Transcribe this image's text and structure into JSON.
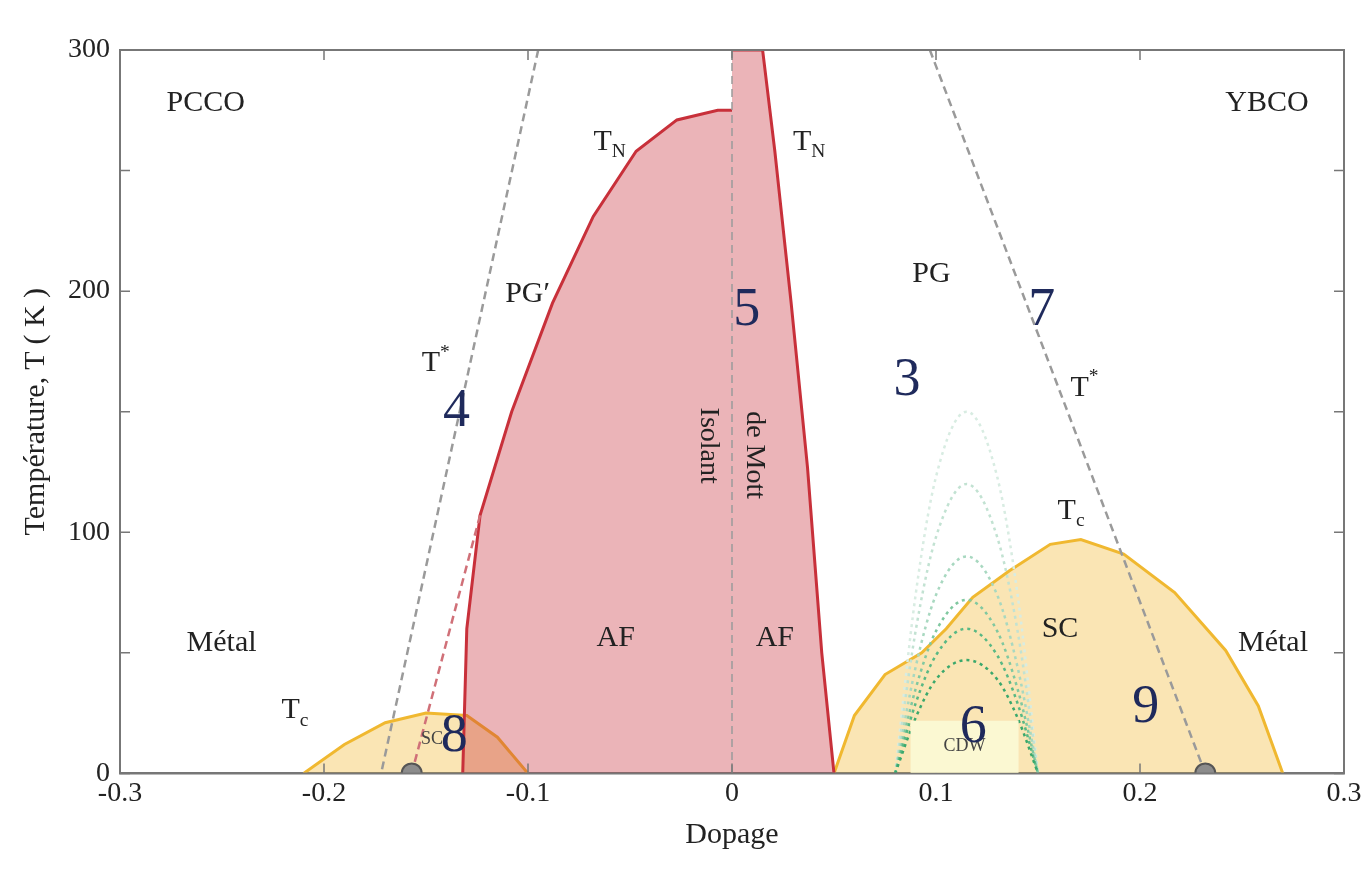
{
  "chart_data": {
    "type": "area",
    "xlabel": "Dopage",
    "ylabel": "Température, T ( K )",
    "xlim": [
      -0.3,
      0.3
    ],
    "xticks": [
      -0.3,
      -0.2,
      -0.1,
      0,
      0.1,
      0.2,
      0.3
    ],
    "ylim": [
      0,
      300
    ],
    "yticks": [
      0,
      {
        "value": 50,
        "label": null
      },
      100,
      {
        "value": 150,
        "label": null
      },
      200,
      {
        "value": 250,
        "label": null
      },
      300
    ],
    "grid": false,
    "legend": false,
    "series": [
      {
        "color": "#f0b830",
        "x": [
          -0.21,
          -0.19,
          -0.17,
          -0.15,
          -0.13,
          -0.115,
          -0.1
        ],
        "values": [
          0,
          12,
          21,
          25,
          24,
          15,
          0
        ]
      },
      {
        "color": "#f0b830",
        "x": [
          0.05,
          0.06,
          0.075,
          0.093,
          0.105,
          0.118,
          0.136,
          0.156,
          0.171,
          0.192,
          0.217,
          0.242,
          0.258,
          0.27
        ],
        "values": [
          0,
          24,
          41,
          50,
          60,
          73,
          84,
          95,
          97,
          91,
          75,
          51,
          28,
          0
        ]
      },
      {
        "type": "line",
        "line_style": "dotted",
        "color": "#d8ece2",
        "x": [
          0.08,
          0.09,
          0.1,
          0.115,
          0.13,
          0.14,
          0.15
        ],
        "values": [
          0,
          74,
          123,
          150,
          123,
          74,
          0
        ]
      },
      {
        "type": "line",
        "line_style": "dotted",
        "color": "#c2e2d2",
        "x": [
          0.08,
          0.09,
          0.1,
          0.115,
          0.13,
          0.14,
          0.15
        ],
        "values": [
          0,
          59,
          98,
          120,
          98,
          59,
          0
        ]
      },
      {
        "type": "line",
        "line_style": "dotted",
        "color": "#a8d8c0",
        "x": [
          0.08,
          0.09,
          0.1,
          0.115,
          0.13,
          0.14,
          0.15
        ],
        "values": [
          0,
          44,
          74,
          90,
          74,
          44,
          0
        ]
      },
      {
        "type": "line",
        "line_style": "dotted",
        "color": "#80c8a0",
        "x": [
          0.08,
          0.09,
          0.1,
          0.115,
          0.13,
          0.14,
          0.15
        ],
        "values": [
          0,
          35,
          59,
          72,
          59,
          35,
          0
        ]
      },
      {
        "type": "line",
        "line_style": "dotted",
        "color": "#58b884",
        "x": [
          0.08,
          0.09,
          0.1,
          0.115,
          0.13,
          0.14,
          0.15
        ],
        "values": [
          0,
          29,
          49,
          60,
          49,
          29,
          0
        ]
      },
      {
        "type": "line",
        "line_style": "dotted",
        "color": "#3aa86c",
        "x": [
          0.08,
          0.09,
          0.1,
          0.115,
          0.13,
          0.14,
          0.15
        ],
        "values": [
          0,
          23,
          39,
          47,
          39,
          23,
          0
        ]
      },
      {
        "color": "#c8303a",
        "x": [
          -0.132,
          -0.13,
          -0.1235,
          -0.108,
          -0.088,
          -0.068,
          -0.047,
          -0.027,
          -0.007,
          0
        ],
        "values": [
          0,
          60,
          107,
          150,
          195,
          231,
          258,
          271,
          275,
          275
        ]
      },
      {
        "color": "#c8303a",
        "x": [
          0,
          0.015,
          0.021,
          0.029,
          0.037,
          0.044,
          0.05
        ],
        "values": [
          300,
          300,
          258,
          195,
          127,
          50,
          0
        ]
      },
      {
        "type": "line",
        "line_style": "dashed",
        "color": "#d07078",
        "x": [
          -0.1235,
          -0.157
        ],
        "values": [
          107,
          0
        ]
      },
      {
        "type": "line",
        "line_style": "dashed",
        "color": "#9a9a9a",
        "x": [
          -0.095,
          -0.172
        ],
        "values": [
          300,
          0
        ]
      },
      {
        "type": "line",
        "line_style": "dashed",
        "color": "#9a9a9a",
        "x": [
          0.097,
          0.232
        ],
        "values": [
          300,
          0
        ]
      },
      {
        "type": "scatter",
        "marker": "circle",
        "color": "#8c8c8c",
        "x": [
          -0.157,
          0.232
        ],
        "values": [
          0,
          0
        ]
      }
    ],
    "ref_lines": [
      {
        "axis": "x",
        "value": 0,
        "color": "#9a9a9a",
        "line_style": "dashed"
      }
    ],
    "annotations": [
      "PCCO",
      "YBCO",
      "T$_{N}$",
      "T$_{N}$",
      "PG′",
      "PG",
      "T$^{*}$",
      "T$^{*}$",
      "Isolant",
      "de Mott",
      "T$_{c}$",
      "SC",
      "Métal",
      "Métal",
      "AF",
      "AF",
      "T$_{c}$",
      "SC",
      "CDW",
      "5",
      "7",
      "3",
      "4",
      "8",
      "6",
      "9"
    ]
  }
}
